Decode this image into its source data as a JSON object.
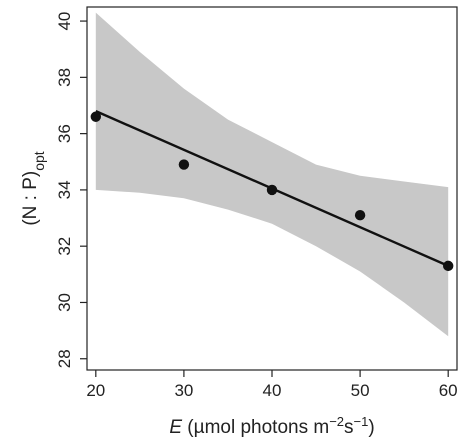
{
  "chart_data": {
    "type": "scatter",
    "x": [
      20,
      30,
      40,
      50,
      60
    ],
    "y": [
      36.6,
      34.9,
      34.0,
      33.1,
      31.3
    ],
    "fit_line": {
      "x": [
        20,
        60
      ],
      "y": [
        36.8,
        31.3
      ]
    },
    "confidence_band": {
      "x": [
        20,
        25,
        30,
        35,
        40,
        45,
        50,
        55,
        60
      ],
      "lower": [
        34.0,
        33.9,
        33.7,
        33.3,
        32.8,
        32.0,
        31.1,
        30.0,
        28.8
      ],
      "upper": [
        40.3,
        38.9,
        37.6,
        36.5,
        35.7,
        34.9,
        34.5,
        34.3,
        34.1
      ]
    },
    "xlim": [
      19,
      61
    ],
    "ylim": [
      27.6,
      40.5
    ],
    "x_ticks": [
      "20",
      "30",
      "40",
      "50",
      "60"
    ],
    "y_ticks": [
      "28",
      "30",
      "32",
      "34",
      "36",
      "38",
      "40"
    ],
    "xlabel": {
      "italic": "E",
      "rest": " (µmol photons m",
      "sup1": "−2",
      "mid": "s",
      "sup2": "−1",
      "end": ")"
    },
    "ylabel": {
      "main": "(N : P)",
      "sub": "opt"
    },
    "grid": false,
    "colors": {
      "band": "#c8c8c8",
      "line": "#111111",
      "points": "#111111",
      "axes": "#222222"
    }
  }
}
